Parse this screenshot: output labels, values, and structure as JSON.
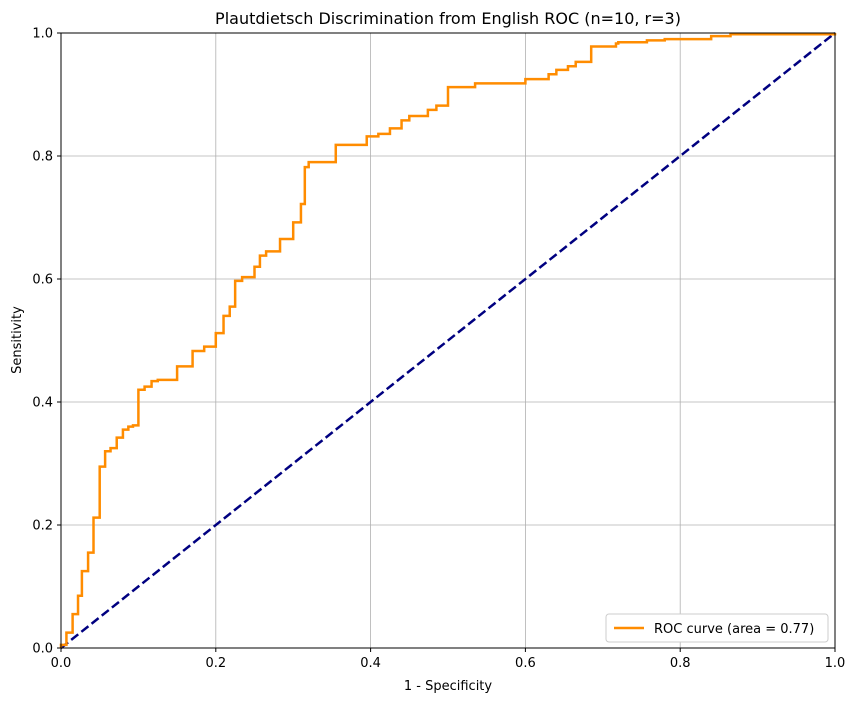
{
  "chart_data": {
    "type": "line",
    "title": "Plautdietsch Discrimination from English ROC (n=10, r=3)",
    "xlabel": "1 - Specificity",
    "ylabel": "Sensitivity",
    "xlim": [
      0.0,
      1.0
    ],
    "ylim": [
      0.0,
      1.0
    ],
    "xticks": [
      "0.0",
      "0.2",
      "0.4",
      "0.6",
      "0.8",
      "1.0"
    ],
    "yticks": [
      "0.0",
      "0.2",
      "0.4",
      "0.6",
      "0.8",
      "1.0"
    ],
    "grid": true,
    "legend_position": "lower right",
    "series": [
      {
        "name": "ROC curve (area = 0.77)",
        "color": "#ff8c00",
        "style": "solid",
        "x": [
          0.0,
          0.0,
          0.007,
          0.007,
          0.015,
          0.015,
          0.022,
          0.022,
          0.027,
          0.027,
          0.035,
          0.035,
          0.042,
          0.042,
          0.05,
          0.05,
          0.057,
          0.057,
          0.064,
          0.064,
          0.072,
          0.072,
          0.08,
          0.08,
          0.087,
          0.087,
          0.093,
          0.093,
          0.1,
          0.1,
          0.108,
          0.108,
          0.117,
          0.117,
          0.125,
          0.125,
          0.15,
          0.15,
          0.17,
          0.17,
          0.185,
          0.185,
          0.2,
          0.2,
          0.21,
          0.21,
          0.218,
          0.218,
          0.225,
          0.225,
          0.234,
          0.234,
          0.25,
          0.25,
          0.257,
          0.257,
          0.265,
          0.265,
          0.283,
          0.283,
          0.3,
          0.3,
          0.31,
          0.31,
          0.315,
          0.315,
          0.32,
          0.32,
          0.355,
          0.355,
          0.395,
          0.395,
          0.41,
          0.41,
          0.425,
          0.425,
          0.44,
          0.44,
          0.45,
          0.45,
          0.474,
          0.474,
          0.485,
          0.485,
          0.5,
          0.5,
          0.535,
          0.535,
          0.6,
          0.6,
          0.63,
          0.63,
          0.64,
          0.64,
          0.655,
          0.655,
          0.665,
          0.665,
          0.685,
          0.685,
          0.717,
          0.717,
          0.72,
          0.72,
          0.757,
          0.757,
          0.78,
          0.78,
          0.84,
          0.84,
          0.865,
          0.865,
          1.0,
          1.0
        ],
        "y": [
          0.0,
          0.005,
          0.005,
          0.025,
          0.025,
          0.055,
          0.055,
          0.085,
          0.085,
          0.125,
          0.125,
          0.155,
          0.155,
          0.212,
          0.212,
          0.295,
          0.295,
          0.32,
          0.32,
          0.325,
          0.325,
          0.342,
          0.342,
          0.355,
          0.355,
          0.36,
          0.36,
          0.362,
          0.362,
          0.42,
          0.42,
          0.425,
          0.425,
          0.434,
          0.434,
          0.436,
          0.436,
          0.458,
          0.458,
          0.483,
          0.483,
          0.49,
          0.49,
          0.512,
          0.512,
          0.54,
          0.54,
          0.555,
          0.555,
          0.597,
          0.597,
          0.603,
          0.603,
          0.62,
          0.62,
          0.638,
          0.638,
          0.645,
          0.645,
          0.665,
          0.665,
          0.692,
          0.692,
          0.722,
          0.722,
          0.782,
          0.782,
          0.79,
          0.79,
          0.818,
          0.818,
          0.832,
          0.832,
          0.836,
          0.836,
          0.845,
          0.845,
          0.858,
          0.858,
          0.865,
          0.865,
          0.875,
          0.875,
          0.882,
          0.882,
          0.912,
          0.912,
          0.918,
          0.918,
          0.925,
          0.925,
          0.933,
          0.933,
          0.94,
          0.94,
          0.946,
          0.946,
          0.953,
          0.953,
          0.978,
          0.978,
          0.983,
          0.983,
          0.985,
          0.985,
          0.988,
          0.988,
          0.99,
          0.99,
          0.995,
          0.995,
          0.998,
          0.998,
          1.0
        ]
      },
      {
        "name": "",
        "color": "#000080",
        "style": "dashed",
        "x": [
          0.0,
          1.0
        ],
        "y": [
          0.0,
          1.0
        ]
      }
    ]
  }
}
